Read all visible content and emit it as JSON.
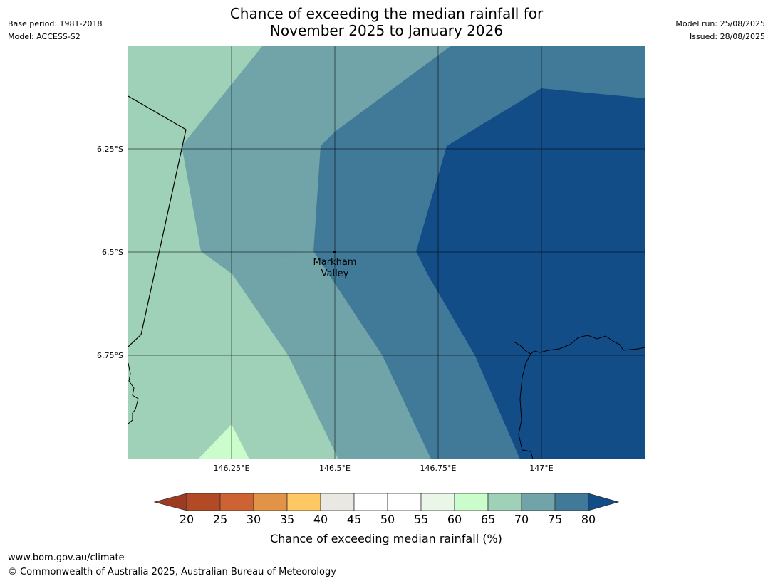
{
  "header": {
    "title_line1": "Chance of exceeding the median rainfall for",
    "title_line2": "November 2025 to January 2026",
    "base_period": "Base period: 1981-2018",
    "model": "Model: ACCESS-S2",
    "model_run": "Model run: 25/08/2025",
    "issued": "Issued: 28/08/2025"
  },
  "map": {
    "lat_ticks": [
      "6.25°S",
      "6.5°S",
      "6.75°S"
    ],
    "lon_ticks": [
      "146.25°E",
      "146.5°E",
      "146.75°E",
      "147°E"
    ],
    "location": {
      "line1": "Markham",
      "line2": "Valley"
    }
  },
  "colorbar": {
    "title": "Chance of exceeding median rainfall (%)",
    "ticks": [
      "20",
      "25",
      "30",
      "35",
      "40",
      "45",
      "50",
      "55",
      "60",
      "65",
      "70",
      "75",
      "80"
    ],
    "colors": {
      "lt20": "#9c3a22",
      "20-25": "#b24a26",
      "25-30": "#cd6332",
      "30-35": "#e29446",
      "35-40": "#fec965",
      "40-45": "#eae8e2",
      "45-50": "#ffffff",
      "50-55": "#ffffff",
      "55-60": "#e9f6e8",
      "60-65": "#cbfccb",
      "65-70": "#9fd1b9",
      "70-75": "#71a4a8",
      "75-80": "#417a98",
      "gt80": "#134d88"
    }
  },
  "footer": {
    "url": "www.bom.gov.au/climate",
    "copyright": "© Commonwealth of Australia 2025, Australian Bureau of Meteorology"
  }
}
